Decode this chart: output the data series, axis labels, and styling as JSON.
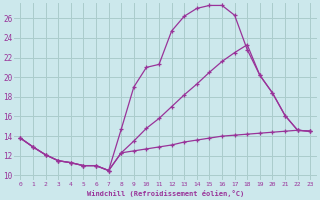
{
  "xlabel": "Windchill (Refroidissement éolien,°C)",
  "background_color": "#cce8ec",
  "grid_color": "#aacccc",
  "line_color": "#993399",
  "xlim": [
    -0.5,
    23.5
  ],
  "ylim": [
    9.5,
    27.5
  ],
  "yticks": [
    10,
    12,
    14,
    16,
    18,
    20,
    22,
    24,
    26
  ],
  "xticks": [
    0,
    1,
    2,
    3,
    4,
    5,
    6,
    7,
    8,
    9,
    10,
    11,
    12,
    13,
    14,
    15,
    16,
    17,
    18,
    19,
    20,
    21,
    22,
    23
  ],
  "line1_x": [
    0,
    1,
    2,
    3,
    4,
    5,
    6,
    7,
    8,
    9,
    10,
    11,
    12,
    13,
    14,
    15,
    16,
    17,
    18,
    19,
    20,
    21,
    22,
    23
  ],
  "line1_y": [
    13.8,
    12.9,
    12.1,
    11.5,
    11.3,
    11.0,
    11.0,
    10.5,
    12.3,
    12.5,
    12.7,
    12.9,
    13.1,
    13.4,
    13.6,
    13.8,
    14.0,
    14.1,
    14.2,
    14.3,
    14.4,
    14.5,
    14.6,
    14.5
  ],
  "line2_x": [
    0,
    1,
    2,
    3,
    4,
    5,
    6,
    7,
    8,
    9,
    10,
    11,
    12,
    13,
    14,
    15,
    16,
    17,
    18,
    19,
    20,
    21,
    22,
    23
  ],
  "line2_y": [
    13.8,
    12.9,
    12.1,
    11.5,
    11.3,
    11.0,
    11.0,
    10.5,
    14.7,
    19.0,
    21.0,
    21.3,
    24.7,
    26.2,
    27.0,
    27.3,
    27.3,
    26.3,
    22.8,
    20.2,
    18.4,
    16.1,
    14.6,
    14.5
  ],
  "line3_x": [
    0,
    1,
    2,
    3,
    4,
    5,
    6,
    7,
    8,
    9,
    10,
    11,
    12,
    13,
    14,
    15,
    16,
    17,
    18,
    19,
    20,
    21,
    22,
    23
  ],
  "line3_y": [
    13.8,
    12.9,
    12.1,
    11.5,
    11.3,
    11.0,
    11.0,
    10.5,
    12.3,
    13.5,
    14.8,
    15.8,
    17.0,
    18.2,
    19.3,
    20.5,
    21.6,
    22.5,
    23.3,
    20.2,
    18.4,
    16.1,
    14.6,
    14.5
  ]
}
